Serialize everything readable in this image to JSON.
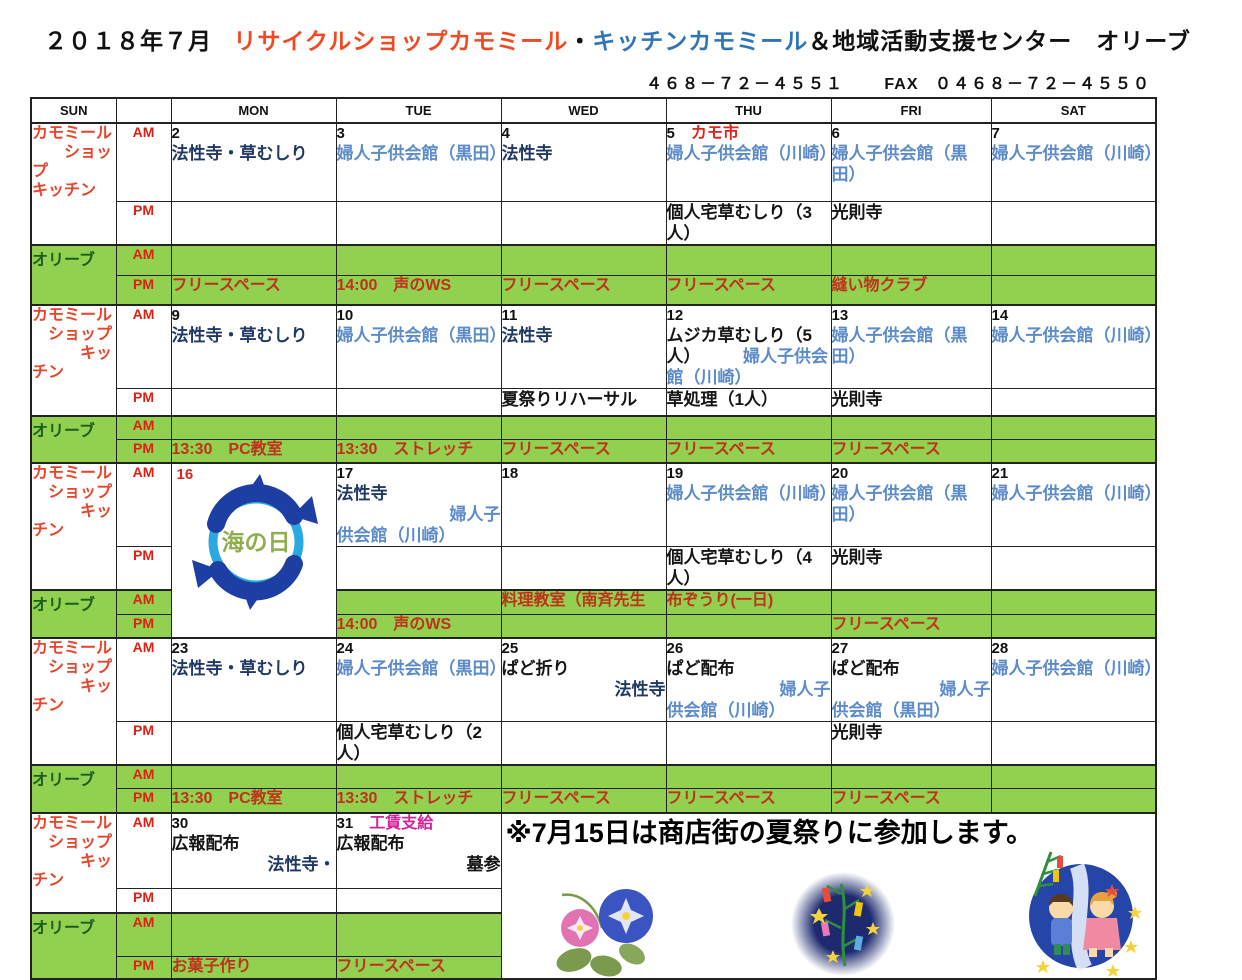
{
  "title": {
    "year_month": "２０１８年７月",
    "shop1": "リサイクルショップカモミール",
    "dot": "・",
    "shop2": "キッチンカモミール",
    "rest": "＆地域活動支援センター　オリーブ"
  },
  "contact": {
    "tel": "４６８－７２－４５５１",
    "fax_label": "FAX",
    "fax": "０４６８－７２－４５５０"
  },
  "weekdays": [
    "SUN",
    "",
    "MON",
    "TUE",
    "WED",
    "THU",
    "FRI",
    "SAT"
  ],
  "row_labels": {
    "chamomile_week1": "カモミール\n　　ショッ\nプ\nキッチン",
    "chamomile": "カモミール\n　ショップ\n　　　キッ\nチン",
    "olive": "オリーブ",
    "am": "AM",
    "pm": "PM"
  },
  "marine_day": {
    "label": "海の日"
  },
  "notice": {
    "text": "※7月15日は商店街の夏祭りに参加します。"
  },
  "colors": {
    "green": "#92d050",
    "label_red": "#e8442a",
    "event_red": "#c0311c",
    "blue": "#5c8bc9",
    "navy": "#1f3864",
    "magenta": "#d6219c",
    "title_red": "#f04a22",
    "title_blue": "#2f75b6"
  },
  "weeks": [
    {
      "days": [
        {
          "num": "2",
          "am": [
            {
              "t": "法性寺・草むしり",
              "c": "navy"
            }
          ],
          "pm": []
        },
        {
          "num": "3",
          "am": [
            {
              "t": "婦人子供会館（黒田）",
              "c": "blue"
            }
          ],
          "pm": []
        },
        {
          "num": "4",
          "am": [
            {
              "t": "法性寺",
              "c": "navy"
            }
          ],
          "pm": []
        },
        {
          "num": "5",
          "badge": {
            "t": "カモ市",
            "c": "kamo"
          },
          "am": [
            {
              "t": "婦人子供会館（川崎）",
              "c": "blue"
            }
          ],
          "pm": [
            {
              "t": "個人宅草むしり（3人）",
              "c": "black"
            }
          ]
        },
        {
          "num": "6",
          "am": [
            {
              "t": "婦人子供会館（黒田）",
              "c": "blue"
            }
          ],
          "pm": [
            {
              "t": "光則寺",
              "c": "black"
            }
          ]
        },
        {
          "num": "7",
          "am": [
            {
              "t": "婦人子供会館（川崎）",
              "c": "blue"
            }
          ],
          "pm": []
        }
      ],
      "olive_am": [
        {
          "diag": 1
        },
        {
          "diag": 1
        },
        {
          "diag": 1
        },
        {
          "diag": 1
        },
        {
          "diag": 1
        },
        {
          "diag": 1
        }
      ],
      "olive_pm": [
        {
          "t": "フリースペース"
        },
        {
          "t": "14:00　声のWS"
        },
        {
          "t": "フリースペース"
        },
        {
          "t": "フリースペース"
        },
        {
          "t": "縫い物クラブ"
        },
        {
          "diag": 1
        }
      ]
    },
    {
      "days": [
        {
          "num": "9",
          "am": [
            {
              "t": "法性寺・草むしり",
              "c": "navy"
            }
          ],
          "pm": []
        },
        {
          "num": "10",
          "am": [
            {
              "t": "婦人子供会館（黒田）",
              "c": "blue"
            }
          ],
          "pm": []
        },
        {
          "num": "11",
          "am": [
            {
              "t": "法性寺",
              "c": "navy"
            }
          ],
          "pm": [
            {
              "t": "夏祭りリハーサル",
              "c": "black"
            }
          ]
        },
        {
          "num": "12",
          "am": [
            {
              "t": "ムジカ草むしり（5人）",
              "c": "black",
              "inline": 1
            },
            {
              "t": "　　　婦人子供会館（川崎）",
              "c": "blue",
              "inline": 1
            }
          ],
          "pm": [
            {
              "t": "草処理（1人）",
              "c": "black"
            }
          ]
        },
        {
          "num": "13",
          "am": [
            {
              "t": "婦人子供会館（黒田）",
              "c": "blue"
            }
          ],
          "pm": [
            {
              "t": "光則寺",
              "c": "black"
            }
          ]
        },
        {
          "num": "14",
          "am": [
            {
              "t": "婦人子供会館（川崎）",
              "c": "blue"
            }
          ],
          "pm": []
        }
      ],
      "olive_am": [
        {
          "diag": 1
        },
        {
          "diag": 1
        },
        {
          "diag": 1
        },
        {
          "diag": 1
        },
        {
          "diag": 1
        },
        {
          "diag": 1
        }
      ],
      "olive_pm": [
        {
          "t": "13:30　PC教室"
        },
        {
          "t": "13:30　ストレッチ"
        },
        {
          "t": "フリースペース"
        },
        {
          "t": "フリースペース"
        },
        {
          "t": "フリースペース"
        },
        {
          "diag": 1
        }
      ]
    },
    {
      "days": [
        {
          "num": "16",
          "marine": 1
        },
        {
          "num": "17",
          "am": [
            {
              "t": "法性寺",
              "c": "navy"
            },
            {
              "t": "婦人子",
              "c": "blue",
              "a": "r"
            },
            {
              "t": "供会館（川崎）",
              "c": "blue"
            }
          ],
          "pm": []
        },
        {
          "num": "18",
          "am": [],
          "pm": []
        },
        {
          "num": "19",
          "am": [
            {
              "t": "婦人子供会館（川崎）",
              "c": "blue"
            }
          ],
          "pm": [
            {
              "t": "個人宅草むしり（4人）",
              "c": "black"
            }
          ]
        },
        {
          "num": "20",
          "am": [
            {
              "t": "婦人子供会館（黒田）",
              "c": "blue"
            }
          ],
          "pm": [
            {
              "t": "光則寺",
              "c": "black"
            }
          ]
        },
        {
          "num": "21",
          "am": [
            {
              "t": "婦人子供会館（川崎）",
              "c": "blue"
            }
          ],
          "pm": []
        }
      ],
      "olive_am": [
        {
          "diag": 1
        },
        {
          "t": "料理教室（南斉先生",
          "c": "red"
        },
        {
          "t": "布ぞうり(一日)",
          "c": "red"
        },
        {
          "diag": 1
        },
        {
          "diag": 1
        }
      ],
      "olive_pm": [
        {
          "t": "14:00　声のWS"
        },
        {},
        {},
        {
          "t": "フリースペース"
        },
        {
          "diag": 1
        }
      ]
    },
    {
      "days": [
        {
          "num": "23",
          "am": [
            {
              "t": "法性寺・草むしり",
              "c": "navy"
            }
          ],
          "pm": []
        },
        {
          "num": "24",
          "am": [
            {
              "t": "婦人子供会館（黒田）",
              "c": "blue"
            }
          ],
          "pm": [
            {
              "t": "個人宅草むしり（2人）",
              "c": "black"
            }
          ]
        },
        {
          "num": "25",
          "am": [
            {
              "t": "ぱど折り",
              "c": "black"
            },
            {
              "t": "法性寺",
              "c": "navy",
              "a": "r"
            }
          ],
          "pm": []
        },
        {
          "num": "26",
          "am": [
            {
              "t": "ぱど配布",
              "c": "black"
            },
            {
              "t": "婦人子",
              "c": "blue",
              "a": "r"
            },
            {
              "t": "供会館（川崎）",
              "c": "blue"
            }
          ],
          "pm": []
        },
        {
          "num": "27",
          "am": [
            {
              "t": "ぱど配布",
              "c": "black"
            },
            {
              "t": "婦人子",
              "c": "blue",
              "a": "r"
            },
            {
              "t": "供会館（黒田）",
              "c": "blue"
            }
          ],
          "pm": [
            {
              "t": "光則寺",
              "c": "black"
            }
          ]
        },
        {
          "num": "28",
          "am": [
            {
              "t": "婦人子供会館（川崎）",
              "c": "blue"
            }
          ],
          "pm": []
        }
      ],
      "olive_am": [
        {
          "diag": 1
        },
        {
          "diag": 1
        },
        {
          "diag": 1
        },
        {
          "diag": 1
        },
        {
          "diag": 1
        },
        {
          "diag": 1
        }
      ],
      "olive_pm": [
        {
          "t": "13:30　PC教室"
        },
        {
          "t": "13:30　ストレッチ"
        },
        {
          "t": "フリースペース"
        },
        {
          "t": "フリースペース"
        },
        {
          "t": "フリースペース"
        },
        {
          "diag": 1
        }
      ]
    },
    {
      "notice_cell": 1,
      "days": [
        {
          "num": "30",
          "am": [
            {
              "t": "広報配布",
              "c": "black"
            },
            {
              "t": "法性寺・",
              "c": "navy",
              "a": "r"
            }
          ],
          "pm": []
        },
        {
          "num": "31",
          "badge": {
            "t": "工賃支給",
            "c": "mag"
          },
          "am": [
            {
              "t": "広報配布",
              "c": "black"
            },
            {
              "t": "墓参",
              "c": "black",
              "a": "r"
            }
          ],
          "pm": []
        }
      ],
      "olive_am": [
        {
          "diag": 1
        },
        {
          "diag": 1
        }
      ],
      "olive_pm": [
        {
          "t": "お菓子作り"
        },
        {
          "t": "フリースペース"
        }
      ]
    }
  ]
}
